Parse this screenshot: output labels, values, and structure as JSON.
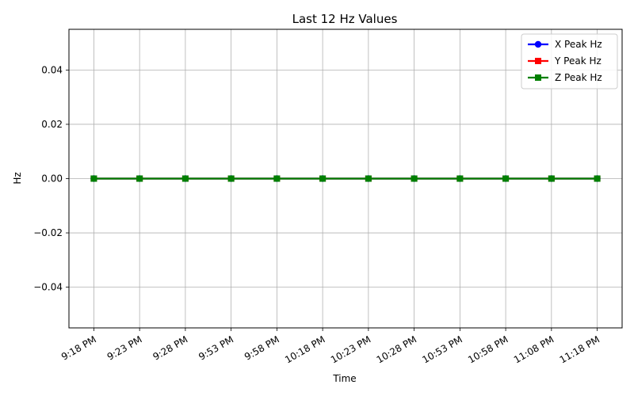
{
  "chart_data": {
    "type": "line",
    "title": "Last 12 Hz Values",
    "xlabel": "Time",
    "ylabel": "Hz",
    "categories": [
      "9:18 PM",
      "9:23 PM",
      "9:28 PM",
      "9:53 PM",
      "9:58 PM",
      "10:18 PM",
      "10:23 PM",
      "10:28 PM",
      "10:53 PM",
      "10:58 PM",
      "11:08 PM",
      "11:18 PM"
    ],
    "ylim": [
      -0.055,
      0.055
    ],
    "yticks": [
      "0.04",
      "0.02",
      "0.00",
      "−0.02",
      "−0.04"
    ],
    "ytick_values": [
      0.04,
      0.02,
      0.0,
      -0.02,
      -0.04
    ],
    "grid": true,
    "legend_position": "top-right",
    "series": [
      {
        "name": "X Peak Hz",
        "color": "#0000ff",
        "marker": "circle",
        "values": [
          0,
          0,
          0,
          0,
          0,
          0,
          0,
          0,
          0,
          0,
          0,
          0
        ]
      },
      {
        "name": "Y Peak Hz",
        "color": "#ff0000",
        "marker": "square",
        "values": [
          0,
          0,
          0,
          0,
          0,
          0,
          0,
          0,
          0,
          0,
          0,
          0
        ]
      },
      {
        "name": "Z Peak Hz",
        "color": "#008000",
        "marker": "square",
        "values": [
          0,
          0,
          0,
          0,
          0,
          0,
          0,
          0,
          0,
          0,
          0,
          0
        ]
      }
    ]
  }
}
